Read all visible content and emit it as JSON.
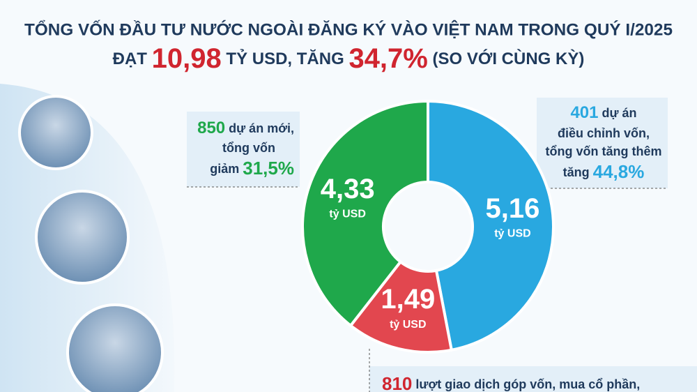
{
  "chart_data": {
    "type": "donut",
    "title": "TỔNG VỐN ĐẦU TƯ NƯỚC NGOÀI ĐĂNG KÝ VÀO VIỆT NAM TRONG QUÝ I/2025",
    "subtitle": [
      "ĐẠT",
      "10,98",
      "TỶ USD, TĂNG",
      "34,7%",
      "(SO VỚI CÙNG KỲ)"
    ],
    "values": [
      5.16,
      1.49,
      4.33
    ],
    "value_labels": [
      "5,16",
      "1,49",
      "4,33"
    ],
    "value_unit": "tỷ USD",
    "colors": [
      "#29a8e0",
      "#e2474f",
      "#1fa84b"
    ],
    "annotations": [
      {
        "number": "401",
        "lines": [
          "dự án",
          "điều chỉnh vốn,",
          "tổng vốn tăng thêm",
          "tăng"
        ],
        "change": "44,8%"
      },
      {
        "number": "810",
        "lines": [
          "lượt giao dịch góp vốn, mua cổ phần,"
        ]
      },
      {
        "number": "850",
        "lines": [
          "dự án mới,",
          "tổng vốn",
          "giảm"
        ],
        "change": "31,5%"
      }
    ]
  }
}
